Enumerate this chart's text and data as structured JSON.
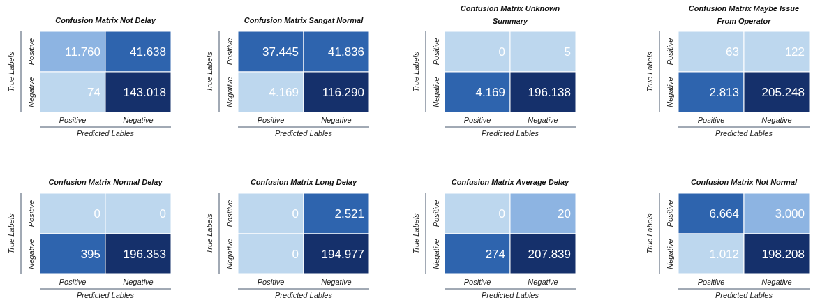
{
  "chart_data": [
    {
      "type": "heatmap",
      "title": "Confusion Matrix Not Delay",
      "xlabel": "Predicted Lables",
      "ylabel": "True Labels",
      "categories": [
        "Positive",
        "Negative"
      ],
      "y_categories": [
        "Positive",
        "Negative"
      ],
      "cells": [
        [
          11760,
          41638
        ],
        [
          74,
          143018
        ]
      ],
      "cell_labels": [
        [
          "11.760",
          "41.638"
        ],
        [
          "74",
          "143.018"
        ]
      ]
    },
    {
      "type": "heatmap",
      "title": "Confusion Matrix Sangat Normal",
      "xlabel": "Predicted Lables",
      "ylabel": "True Labels",
      "categories": [
        "Positive",
        "Negative"
      ],
      "y_categories": [
        "Positive",
        "Negative"
      ],
      "cells": [
        [
          37445,
          41836
        ],
        [
          4169,
          116290
        ]
      ],
      "cell_labels": [
        [
          "37.445",
          "41.836"
        ],
        [
          "4.169",
          "116.290"
        ]
      ]
    },
    {
      "type": "heatmap",
      "title": "Confusion Matrix Unknown Summary",
      "xlabel": "Predicted Lables",
      "ylabel": "True Labels",
      "categories": [
        "Positive",
        "Negative"
      ],
      "y_categories": [
        "Positive",
        "Negative"
      ],
      "cells": [
        [
          0,
          5
        ],
        [
          4169,
          196138
        ]
      ],
      "cell_labels": [
        [
          "0",
          "5"
        ],
        [
          "4.169",
          "196.138"
        ]
      ]
    },
    {
      "type": "heatmap",
      "title": "Confusion Matrix Maybe Issue From Operator",
      "xlabel": "Predicted Lables",
      "ylabel": "True Labels",
      "categories": [
        "Positive",
        "Negative"
      ],
      "y_categories": [
        "Positive",
        "Negative"
      ],
      "cells": [
        [
          63,
          122
        ],
        [
          2813,
          205248
        ]
      ],
      "cell_labels": [
        [
          "63",
          "122"
        ],
        [
          "2.813",
          "205.248"
        ]
      ]
    },
    {
      "type": "heatmap",
      "title": "Confusion Matrix Normal Delay",
      "xlabel": "Predicted Lables",
      "ylabel": "True Labels",
      "categories": [
        "Positive",
        "Negative"
      ],
      "y_categories": [
        "Positive",
        "Negative"
      ],
      "cells": [
        [
          0,
          0
        ],
        [
          395,
          196353
        ]
      ],
      "cell_labels": [
        [
          "0",
          "0"
        ],
        [
          "395",
          "196.353"
        ]
      ]
    },
    {
      "type": "heatmap",
      "title": "Confusion Matrix Long Delay",
      "xlabel": "Predicted Lables",
      "ylabel": "True Labels",
      "categories": [
        "Positive",
        "Negative"
      ],
      "y_categories": [
        "Positive",
        "Negative"
      ],
      "cells": [
        [
          0,
          2521
        ],
        [
          0,
          194977
        ]
      ],
      "cell_labels": [
        [
          "0",
          "2.521"
        ],
        [
          "0",
          "194.977"
        ]
      ]
    },
    {
      "type": "heatmap",
      "title": "Confusion Matrix Average Delay",
      "xlabel": "Predicted Lables",
      "ylabel": "True Labels",
      "categories": [
        "Positive",
        "Negative"
      ],
      "y_categories": [
        "Positive",
        "Negative"
      ],
      "cells": [
        [
          0,
          20
        ],
        [
          274,
          207839
        ]
      ],
      "cell_labels": [
        [
          "0",
          "20"
        ],
        [
          "274",
          "207.839"
        ]
      ]
    },
    {
      "type": "heatmap",
      "title": "Confusion Matrix Not Normal",
      "xlabel": "Predicted Lables",
      "ylabel": "True Labels",
      "categories": [
        "Positive",
        "Negative"
      ],
      "y_categories": [
        "Positive",
        "Negative"
      ],
      "cells": [
        [
          6664,
          3000
        ],
        [
          1012,
          198208
        ]
      ],
      "cell_labels": [
        [
          "6.664",
          "3.000"
        ],
        [
          "1.012",
          "198.208"
        ]
      ]
    }
  ]
}
